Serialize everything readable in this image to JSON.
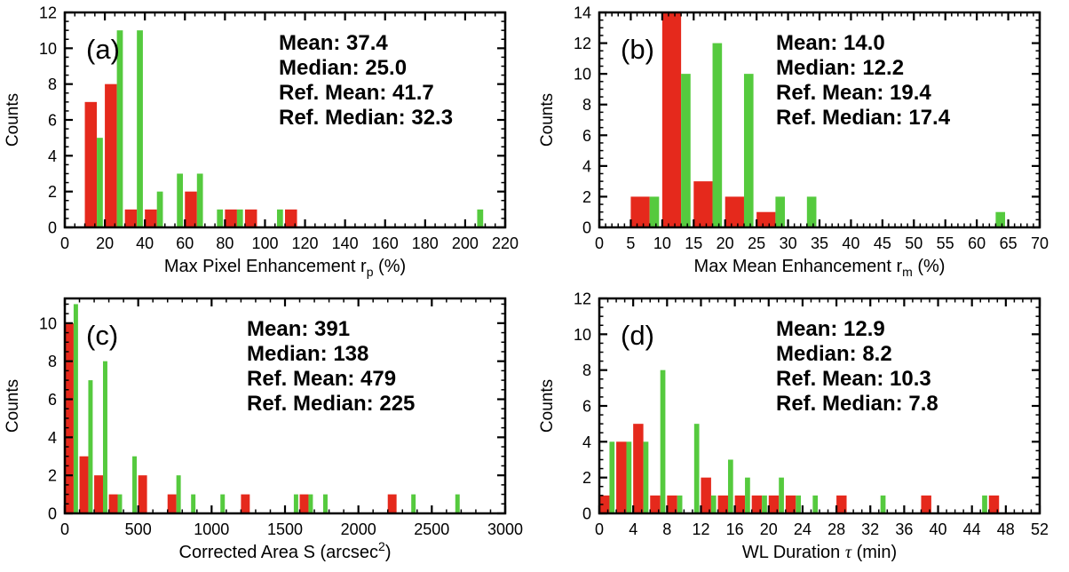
{
  "figure": {
    "ylabel_shared": "Counts",
    "palette": {
      "red": "#e5291c",
      "green": "#55ca3e",
      "axis": "#000000",
      "background": "#ffffff"
    }
  },
  "chart_data": [
    {
      "id": "a",
      "type": "bar",
      "panel_label": "(a)",
      "ylabel": "Counts",
      "xlabel_parts": [
        {
          "t": "Max Pixel Enhancement r"
        },
        {
          "t": "p",
          "script": "sub"
        },
        {
          "t": " (%)"
        }
      ],
      "xlim": [
        0,
        220
      ],
      "xtick_major": 20,
      "xtick_minor": 5,
      "ylim": [
        0,
        12
      ],
      "ytick_major": 2,
      "ytick_minor": 0.5,
      "bin_width": 10,
      "grid": false,
      "legend": "none",
      "series": [
        {
          "name": "main",
          "color": "red",
          "bins": [
            [
              10,
              7
            ],
            [
              20,
              8
            ],
            [
              30,
              1
            ],
            [
              40,
              1
            ],
            [
              60,
              2
            ],
            [
              80,
              1
            ],
            [
              90,
              1
            ],
            [
              110,
              1
            ]
          ]
        },
        {
          "name": "reference",
          "color": "green",
          "bins": [
            [
              10,
              5
            ],
            [
              20,
              11
            ],
            [
              30,
              11
            ],
            [
              40,
              2
            ],
            [
              50,
              3
            ],
            [
              60,
              3
            ],
            [
              70,
              1
            ],
            [
              80,
              1
            ],
            [
              100,
              1
            ],
            [
              200,
              1
            ]
          ]
        }
      ],
      "stats": [
        {
          "text": "Mean: 37.4",
          "color": "red"
        },
        {
          "text": "Median: 25.0",
          "color": "red"
        },
        {
          "text": "Ref. Mean: 41.7",
          "color": "green"
        },
        {
          "text": "Ref. Median: 32.3",
          "color": "green"
        }
      ]
    },
    {
      "id": "b",
      "type": "bar",
      "panel_label": "(b)",
      "ylabel": "Counts",
      "xlabel_parts": [
        {
          "t": "Max Mean Enhancement r"
        },
        {
          "t": "m",
          "script": "sub"
        },
        {
          "t": " (%)"
        }
      ],
      "xlim": [
        0,
        70
      ],
      "xtick_major": 5,
      "xtick_minor": 1,
      "ylim": [
        0,
        14
      ],
      "ytick_major": 2,
      "ytick_minor": 0.5,
      "bin_width": 5,
      "grid": false,
      "legend": "none",
      "series": [
        {
          "name": "main",
          "color": "red",
          "bins": [
            [
              5,
              2
            ],
            [
              10,
              14
            ],
            [
              15,
              3
            ],
            [
              20,
              2
            ],
            [
              25,
              1
            ]
          ]
        },
        {
          "name": "reference",
          "color": "green",
          "bins": [
            [
              5,
              2
            ],
            [
              10,
              10
            ],
            [
              15,
              12
            ],
            [
              20,
              10
            ],
            [
              25,
              2
            ],
            [
              30,
              2
            ],
            [
              60,
              1
            ]
          ]
        }
      ],
      "stats": [
        {
          "text": "Mean: 14.0",
          "color": "red"
        },
        {
          "text": "Median: 12.2",
          "color": "red"
        },
        {
          "text": "Ref. Mean: 19.4",
          "color": "green"
        },
        {
          "text": "Ref. Median: 17.4",
          "color": "green"
        }
      ]
    },
    {
      "id": "c",
      "type": "bar",
      "panel_label": "(c)",
      "ylabel": "Counts",
      "xlabel_parts": [
        {
          "t": "Corrected Area S (arcsec"
        },
        {
          "t": "2",
          "script": "sup"
        },
        {
          "t": ")"
        }
      ],
      "xlim": [
        0,
        3000
      ],
      "xtick_major": 500,
      "xtick_minor": 100,
      "ylim": [
        0,
        11.3
      ],
      "ytick_major": 2,
      "ytick_minor": 0.5,
      "bin_width": 100,
      "grid": false,
      "legend": "none",
      "series": [
        {
          "name": "main",
          "color": "red",
          "bins": [
            [
              0,
              10
            ],
            [
              100,
              3
            ],
            [
              200,
              2
            ],
            [
              300,
              1
            ],
            [
              500,
              2
            ],
            [
              700,
              1
            ],
            [
              1200,
              1
            ],
            [
              1600,
              1
            ],
            [
              2200,
              1
            ]
          ]
        },
        {
          "name": "reference",
          "color": "green",
          "bins": [
            [
              0,
              11
            ],
            [
              100,
              7
            ],
            [
              200,
              8
            ],
            [
              300,
              1
            ],
            [
              400,
              3
            ],
            [
              700,
              2
            ],
            [
              800,
              1
            ],
            [
              1000,
              1
            ],
            [
              1500,
              1
            ],
            [
              1600,
              1
            ],
            [
              1700,
              1
            ],
            [
              2300,
              1
            ],
            [
              2600,
              1
            ]
          ]
        }
      ],
      "stats": [
        {
          "text": "Mean: 391",
          "color": "red"
        },
        {
          "text": "Median: 138",
          "color": "red"
        },
        {
          "text": "Ref. Mean: 479",
          "color": "green"
        },
        {
          "text": "Ref. Median: 225",
          "color": "green"
        }
      ]
    },
    {
      "id": "d",
      "type": "bar",
      "panel_label": "(d)",
      "ylabel": "Counts",
      "xlabel_parts": [
        {
          "t": "WL Duration "
        },
        {
          "t": "τ",
          "script": "greek"
        },
        {
          "t": " (min)"
        }
      ],
      "xlim": [
        0,
        52
      ],
      "xtick_major": 4,
      "xtick_minor": 1,
      "ylim": [
        0,
        12
      ],
      "ytick_major": 2,
      "ytick_minor": 0.5,
      "bin_width": 2,
      "grid": false,
      "legend": "none",
      "series": [
        {
          "name": "main",
          "color": "red",
          "bins": [
            [
              0,
              1
            ],
            [
              2,
              4
            ],
            [
              4,
              5
            ],
            [
              6,
              1
            ],
            [
              8,
              1
            ],
            [
              12,
              2
            ],
            [
              14,
              1
            ],
            [
              16,
              1
            ],
            [
              18,
              1
            ],
            [
              20,
              1
            ],
            [
              22,
              1
            ],
            [
              28,
              1
            ],
            [
              38,
              1
            ],
            [
              46,
              1
            ]
          ]
        },
        {
          "name": "reference",
          "color": "green",
          "bins": [
            [
              0,
              4
            ],
            [
              2,
              4
            ],
            [
              4,
              4
            ],
            [
              6,
              8
            ],
            [
              8,
              1
            ],
            [
              10,
              5
            ],
            [
              12,
              1
            ],
            [
              14,
              3
            ],
            [
              16,
              2
            ],
            [
              18,
              1
            ],
            [
              20,
              2
            ],
            [
              22,
              1
            ],
            [
              24,
              1
            ],
            [
              32,
              1
            ],
            [
              44,
              1
            ]
          ]
        }
      ],
      "stats": [
        {
          "text": "Mean: 12.9",
          "color": "red"
        },
        {
          "text": "Median: 8.2",
          "color": "red"
        },
        {
          "text": "Ref. Mean: 10.3",
          "color": "green"
        },
        {
          "text": "Ref. Median: 7.8",
          "color": "green"
        }
      ]
    }
  ]
}
